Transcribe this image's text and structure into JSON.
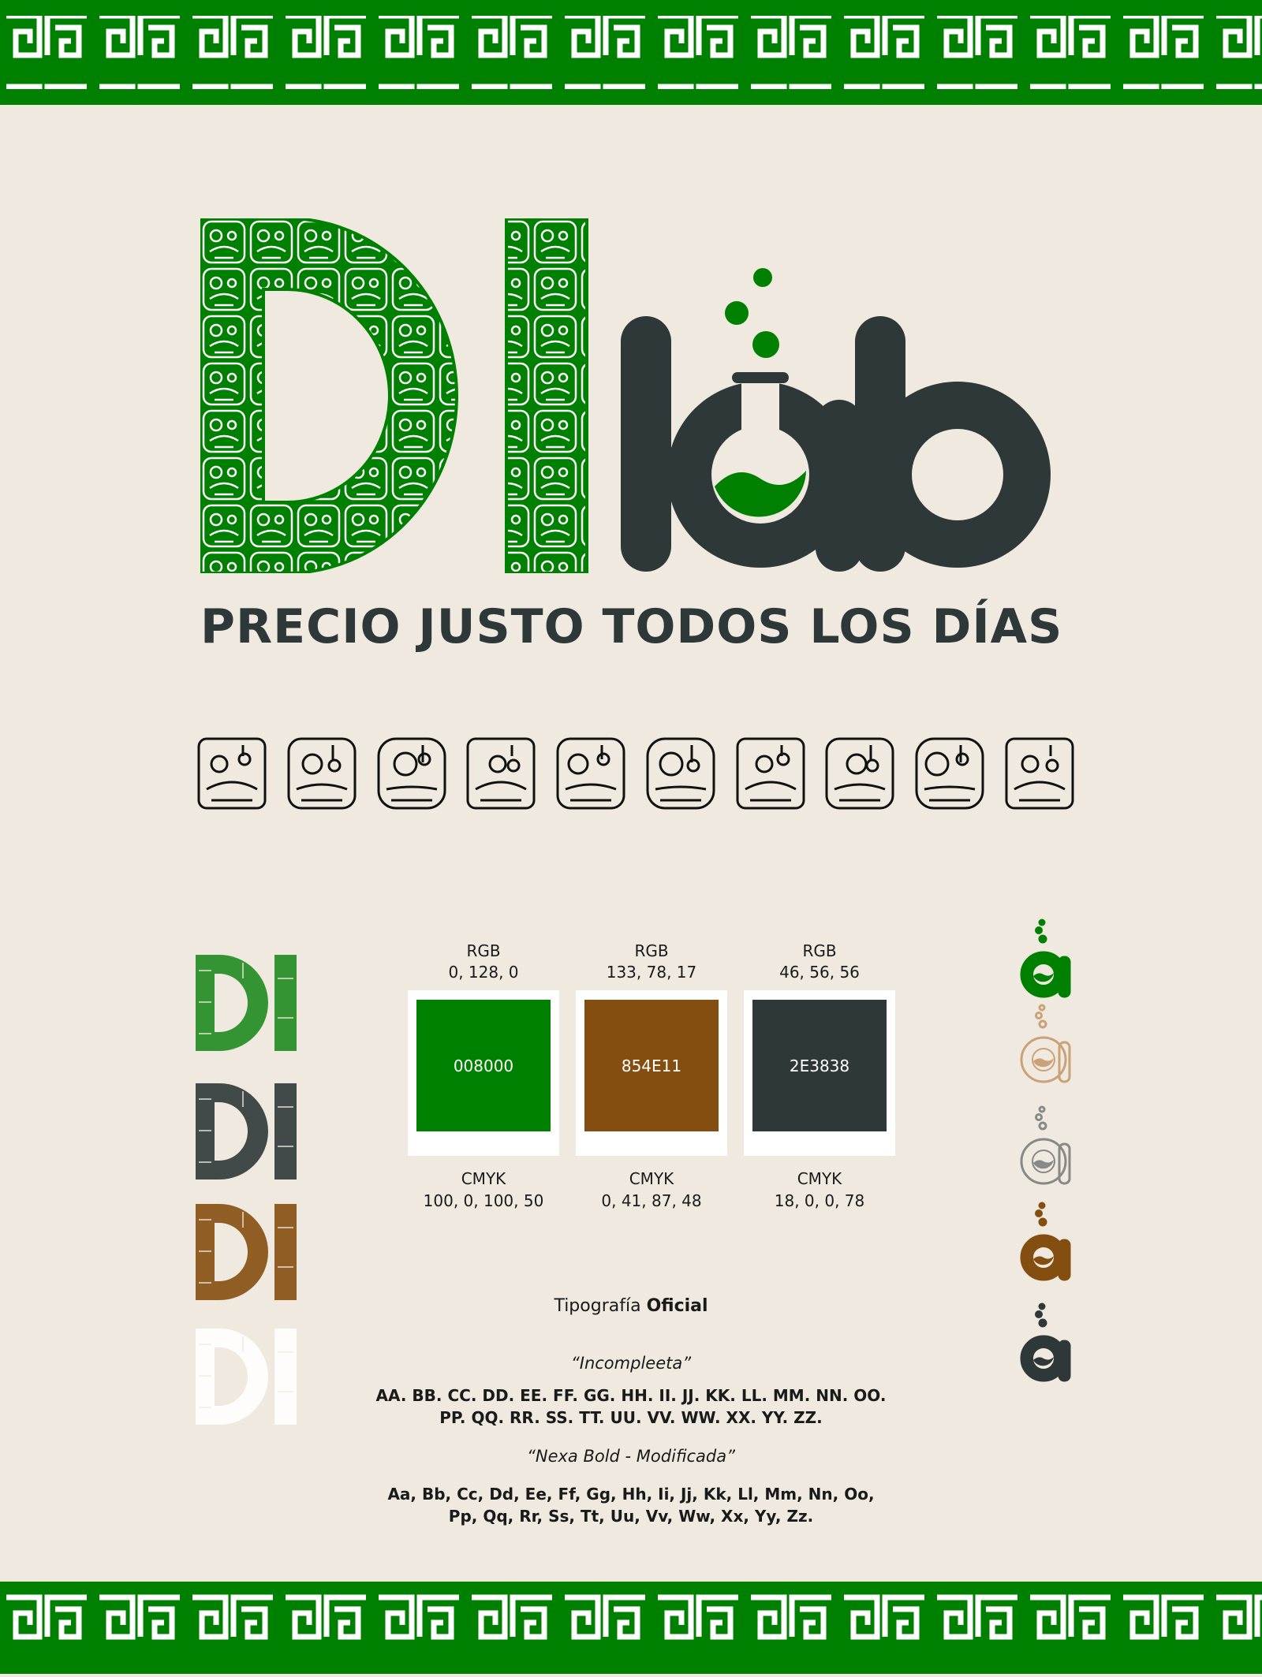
{
  "logo": {
    "mark": "DI",
    "word": "lab",
    "tagline": "PRECIO JUSTO TODOS LOS DÍAS"
  },
  "glyphs": [
    "maya-glyph",
    "maya-glyph",
    "maya-glyph",
    "maya-glyph",
    "maya-glyph",
    "maya-glyph",
    "maya-glyph",
    "maya-glyph",
    "maya-glyph",
    "maya-glyph"
  ],
  "colors": {
    "background": "#efe9df",
    "green": "#008000",
    "brown": "#854E11",
    "dark": "#2E3838"
  },
  "palette": [
    {
      "rgb_label": "RGB",
      "rgb": "0, 128, 0",
      "hex": "008000",
      "swatch": "#008000",
      "cmyk_label": "CMYK",
      "cmyk": "100, 0, 100, 50"
    },
    {
      "rgb_label": "RGB",
      "rgb": "133, 78, 17",
      "hex": "854E11",
      "swatch": "#854E11",
      "cmyk_label": "CMYK",
      "cmyk": "0, 41, 87, 48"
    },
    {
      "rgb_label": "RGB",
      "rgb": "46, 56, 56",
      "hex": "2E3838",
      "swatch": "#2E3838",
      "cmyk_label": "CMYK",
      "cmyk": "18, 0, 0, 78"
    }
  ],
  "mark_variants": [
    "#1f8a1f",
    "#2e3838",
    "#854E11",
    "#ffffff"
  ],
  "icon_variants": [
    "green-filled",
    "brown-outline",
    "gray-outline",
    "brown-filled",
    "dark-filled"
  ],
  "typography": {
    "title_regular": "Tipografía",
    "title_bold": "Oficial",
    "font1_name": "“Incompleeta”",
    "font1_line1": "AA. BB. CC. DD. EE. FF. GG. HH. II. JJ. KK. LL. MM. NN. OO.",
    "font1_line2": "PP. QQ. RR. SS. TT. UU. VV. WW. XX. YY. ZZ.",
    "font2_name": "“Nexa Bold - Modificada”",
    "font2_line1": "Aa, Bb, Cc, Dd, Ee, Ff, Gg, Hh, Ii, Jj, Kk, Ll, Mm, Nn, Oo,",
    "font2_line2": "Pp, Qq, Rr, Ss, Tt, Uu, Vv, Ww, Xx, Yy, Zz."
  }
}
